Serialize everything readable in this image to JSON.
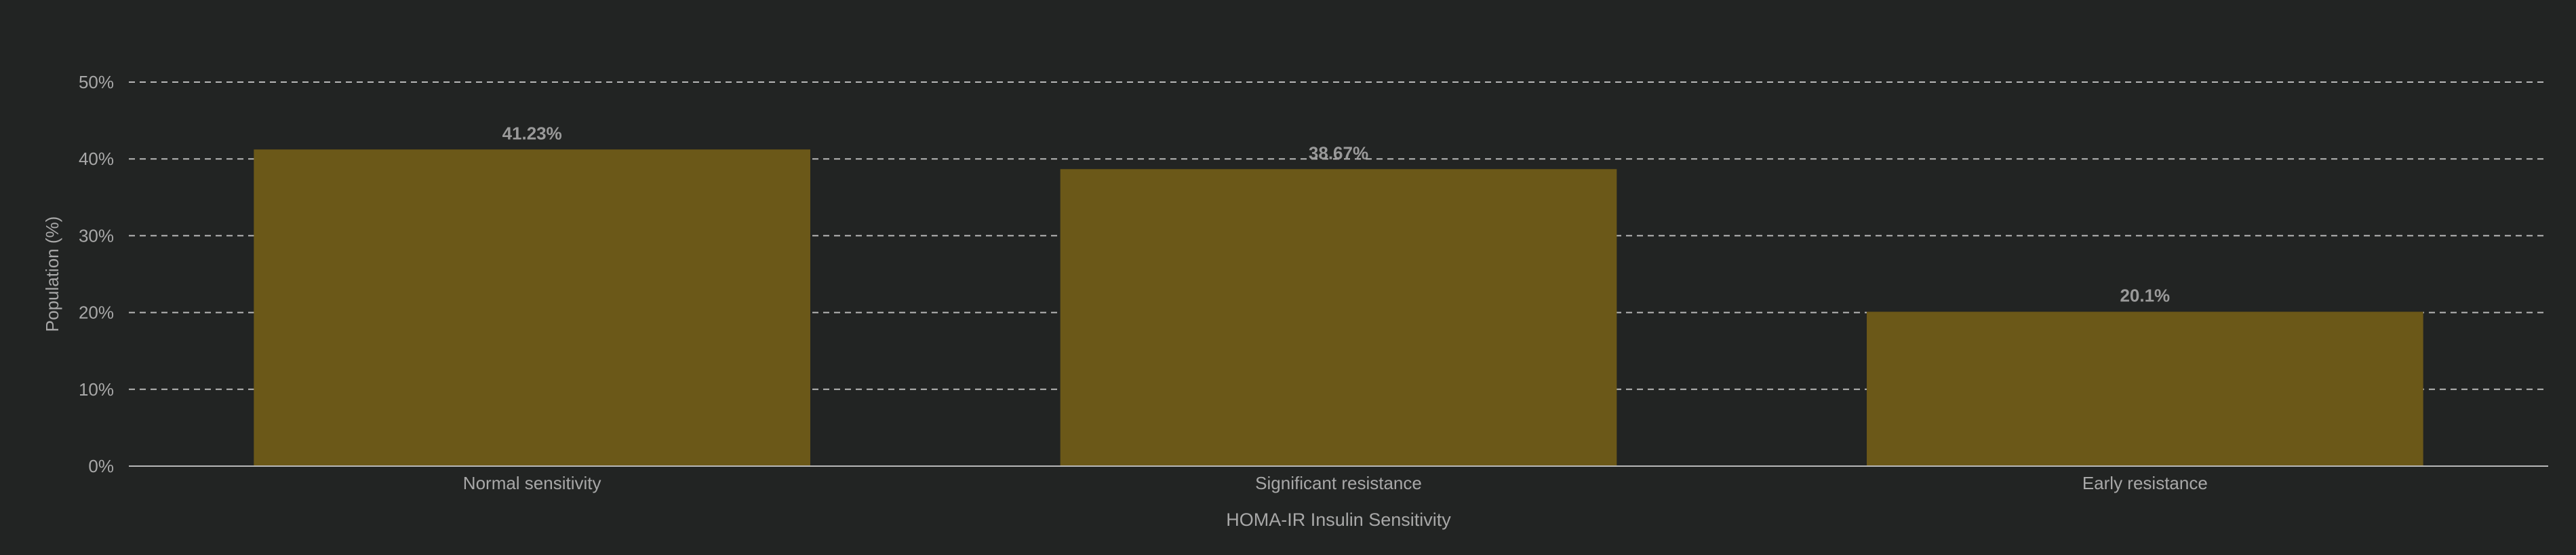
{
  "colors": {
    "background": "#222423",
    "bar": "#6b5818",
    "grid": "#b8b8b8",
    "axis": "#b8b8b8",
    "text": "#a8a8a8",
    "value_label": "#9a9a9a"
  },
  "chart_data": {
    "type": "bar",
    "categories": [
      "Normal sensitivity",
      "Significant resistance",
      "Early resistance"
    ],
    "values": [
      41.23,
      38.67,
      20.1
    ],
    "value_labels": [
      "41.23%",
      "38.67%",
      "20.1%"
    ],
    "xlabel": "HOMA-IR Insulin Sensitivity",
    "ylabel": "Population (%)",
    "ylim": [
      0,
      50
    ],
    "yticks": [
      0,
      10,
      20,
      30,
      40,
      50
    ],
    "ytick_labels": [
      "0%",
      "10%",
      "20%",
      "30%",
      "40%",
      "50%"
    ],
    "grid": true,
    "legend": "none"
  }
}
